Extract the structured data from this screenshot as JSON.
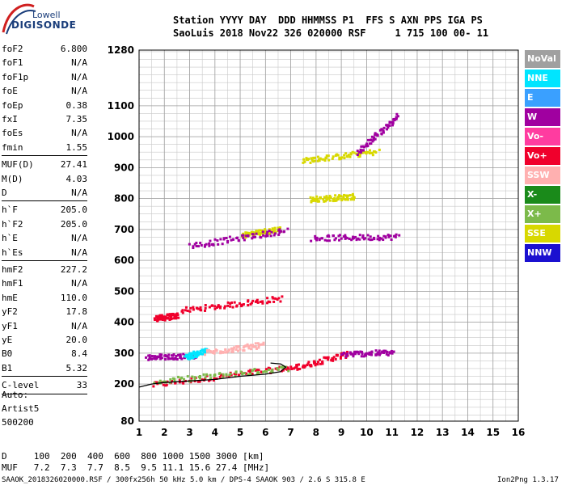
{
  "logo": {
    "line1": "Lowell",
    "line2": "DIGISONDE"
  },
  "header": {
    "line1": "Station YYYY DAY  DDD HHMMSS P1  FFS S AXN PPS IGA PS",
    "line2": "SaoLuis 2018 Nov22 326 020000 RSF     1 715 100 00- 11"
  },
  "params_group1": [
    {
      "label": "foF2",
      "value": "6.800"
    },
    {
      "label": "foF1",
      "value": "N/A"
    },
    {
      "label": "foF1p",
      "value": "N/A"
    },
    {
      "label": "foE",
      "value": "N/A"
    },
    {
      "label": "foEp",
      "value": "0.38"
    },
    {
      "label": "fxI",
      "value": "7.35"
    },
    {
      "label": "foEs",
      "value": "N/A"
    },
    {
      "label": "fmin",
      "value": "1.55"
    }
  ],
  "params_group2": [
    {
      "label": "MUF(D)",
      "value": "27.41"
    },
    {
      "label": "M(D)",
      "value": "4.03"
    },
    {
      "label": "D",
      "value": "N/A"
    }
  ],
  "params_group3": [
    {
      "label": "h`F",
      "value": "205.0"
    },
    {
      "label": "h`F2",
      "value": "205.0"
    },
    {
      "label": "h`E",
      "value": "N/A"
    },
    {
      "label": "h`Es",
      "value": "N/A"
    }
  ],
  "params_group4": [
    {
      "label": "hmF2",
      "value": "227.2"
    },
    {
      "label": "hmF1",
      "value": "N/A"
    },
    {
      "label": "hmE",
      "value": "110.0"
    },
    {
      "label": "yF2",
      "value": "17.8"
    },
    {
      "label": "yF1",
      "value": "N/A"
    },
    {
      "label": "yE",
      "value": "20.0"
    },
    {
      "label": "B0",
      "value": "8.4"
    },
    {
      "label": "B1",
      "value": "5.32"
    }
  ],
  "params_group5": [
    {
      "label": "C-level",
      "value": "33"
    }
  ],
  "autoscale": {
    "line1": "Auto:",
    "line2": "Artist5",
    "line3": "500200"
  },
  "legend": [
    {
      "label": "NoVal",
      "color": "#a0a0a0"
    },
    {
      "label": "NNE",
      "color": "#00e5ff"
    },
    {
      "label": "E",
      "color": "#3aa0ff"
    },
    {
      "label": "W",
      "color": "#a000a0"
    },
    {
      "label": "Vo-",
      "color": "#ff3ca0"
    },
    {
      "label": "Vo+",
      "color": "#f0002c"
    },
    {
      "label": "SSW",
      "color": "#ffb0b0"
    },
    {
      "label": "X-",
      "color": "#1a8a1a"
    },
    {
      "label": "X+",
      "color": "#7cba4a"
    },
    {
      "label": "SSE",
      "color": "#d8d800"
    },
    {
      "label": "NNW",
      "color": "#1a10d0"
    }
  ],
  "footer": {
    "line1": "D     100  200  400  600  800 1000 1500 3000 [km]",
    "line2": "MUF   7.2  7.3  7.7  8.5  9.5 11.1 15.6 27.4 [MHz]",
    "line3": "SAAOK_2018326020000.RSF / 300fx256h 50 kHz 5.0 km / DPS-4 SAAOK 903 / 2.6 S 315.8 E",
    "version": "Ion2Png 1.3.17"
  },
  "chart_data": {
    "type": "scatter",
    "xlabel": "",
    "ylabel": "",
    "xlim": [
      1,
      16
    ],
    "ylim": [
      80,
      1280
    ],
    "x_ticks": [
      1,
      2,
      3,
      4,
      5,
      6,
      7,
      8,
      9,
      10,
      11,
      12,
      13,
      14,
      15,
      16
    ],
    "y_ticks": [
      80,
      200,
      300,
      400,
      500,
      600,
      700,
      800,
      900,
      1000,
      1100,
      1280
    ],
    "grid": true,
    "legend_position": "right",
    "profile": {
      "x": [
        1.0,
        1.5,
        2.0,
        3.0,
        4.0,
        5.0,
        6.0,
        6.6,
        6.8,
        6.6,
        6.2
      ],
      "y": [
        190,
        200,
        205,
        210,
        215,
        225,
        232,
        240,
        255,
        265,
        268
      ]
    },
    "traces": [
      {
        "series": "Vo+",
        "x": [
          1.5,
          6.8
        ],
        "y": [
          200,
          255
        ]
      },
      {
        "series": "Vo+",
        "x": [
          1.6,
          2.5
        ],
        "y": [
          415,
          425
        ]
      },
      {
        "series": "Vo+",
        "x": [
          2.6,
          6.6
        ],
        "y": [
          440,
          480
        ]
      },
      {
        "series": "Vo+",
        "x": [
          6.8,
          9.2
        ],
        "y": [
          250,
          300
        ]
      },
      {
        "series": "X+",
        "x": [
          1.6,
          6.8
        ],
        "y": [
          210,
          255
        ]
      },
      {
        "series": "W",
        "x": [
          1.3,
          3.2
        ],
        "y": [
          290,
          295
        ]
      },
      {
        "series": "SSE",
        "x": [
          7.4,
          10.4
        ],
        "y": [
          925,
          955
        ]
      },
      {
        "series": "W",
        "x": [
          9.6,
          11.2
        ],
        "y": [
          950,
          1070
        ]
      },
      {
        "series": "SSE",
        "x": [
          7.7,
          9.5
        ],
        "y": [
          800,
          810
        ]
      },
      {
        "series": "W",
        "x": [
          7.8,
          11.2
        ],
        "y": [
          675,
          680
        ]
      },
      {
        "series": "SSE",
        "x": [
          5.0,
          6.6
        ],
        "y": [
          685,
          705
        ]
      },
      {
        "series": "W",
        "x": [
          3.0,
          6.8
        ],
        "y": [
          650,
          700
        ]
      },
      {
        "series": "NNE",
        "x": [
          2.8,
          3.6
        ],
        "y": [
          290,
          310
        ]
      },
      {
        "series": "W",
        "x": [
          9.0,
          11.0
        ],
        "y": [
          300,
          305
        ]
      },
      {
        "series": "SSW",
        "x": [
          3.6,
          5.9
        ],
        "y": [
          305,
          330
        ]
      }
    ]
  }
}
